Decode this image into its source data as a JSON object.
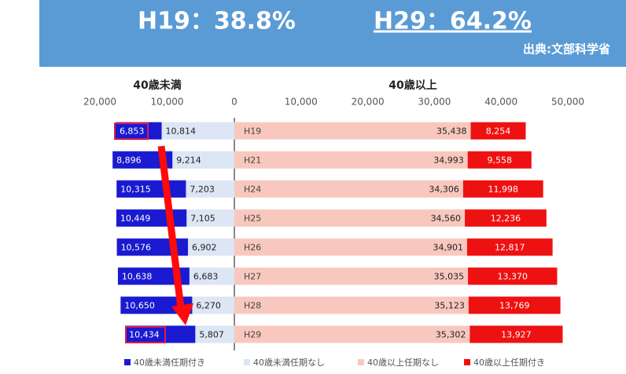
{
  "header": {
    "left": "H19：38.8%",
    "right": "H29：64.2%",
    "source": "出典:文部科学省"
  },
  "chart_data": [
    {
      "type": "bar",
      "orientation": "horizontal",
      "stacked": true,
      "title": "40歳未満",
      "xlim": [
        20000,
        0
      ],
      "xticks": [
        {
          "value": 20000,
          "label": "20,000"
        },
        {
          "value": 10000,
          "label": "10,000"
        },
        0
      ],
      "series": [
        {
          "name": "40歳未満任期なし",
          "color": "#dce6f4",
          "values": [
            10814,
            9214,
            7203,
            7105,
            6902,
            6683,
            6270,
            5807
          ],
          "value_labels": [
            "10,814",
            "9,214",
            "7,203",
            "7,105",
            "6,902",
            "6,683",
            "6,270",
            "5,807"
          ]
        },
        {
          "name": "40歳未満任期付き",
          "color": "#1a1ad0",
          "values": [
            6853,
            8896,
            10315,
            10449,
            10576,
            10638,
            10650,
            10434
          ],
          "value_labels": [
            "6,853",
            "8,896",
            "10,315",
            "10,449",
            "10,576",
            "10,638",
            "10,650",
            "10,434"
          ]
        }
      ]
    },
    {
      "type": "bar",
      "orientation": "horizontal",
      "stacked": true,
      "title": "40歳以上",
      "categories": [
        "H19",
        "H21",
        "H24",
        "H25",
        "H26",
        "H27",
        "H28",
        "H29"
      ],
      "xlim": [
        0,
        50000
      ],
      "xticks": [
        {
          "value": 10000,
          "label": "10,000"
        },
        {
          "value": 20000,
          "label": "20,000"
        },
        {
          "value": 30000,
          "label": "30,000"
        },
        {
          "value": 40000,
          "label": "40,000"
        },
        {
          "value": 50000,
          "label": "50,000"
        }
      ],
      "series": [
        {
          "name": "40歳以上任期なし",
          "color": "#f8c8be",
          "values": [
            35438,
            34993,
            34306,
            34560,
            34901,
            35035,
            35123,
            35302
          ],
          "value_labels": [
            "35,438",
            "34,993",
            "34,306",
            "34,560",
            "34,901",
            "35,035",
            "35,123",
            "35,302"
          ]
        },
        {
          "name": "40歳以上任期付き",
          "color": "#ee1111",
          "values": [
            8254,
            9558,
            11998,
            12236,
            12817,
            13370,
            13769,
            13927
          ],
          "value_labels": [
            "8,254",
            "9,558",
            "11,998",
            "12,236",
            "12,817",
            "13,370",
            "13,769",
            "13,927"
          ]
        }
      ]
    }
  ]
}
